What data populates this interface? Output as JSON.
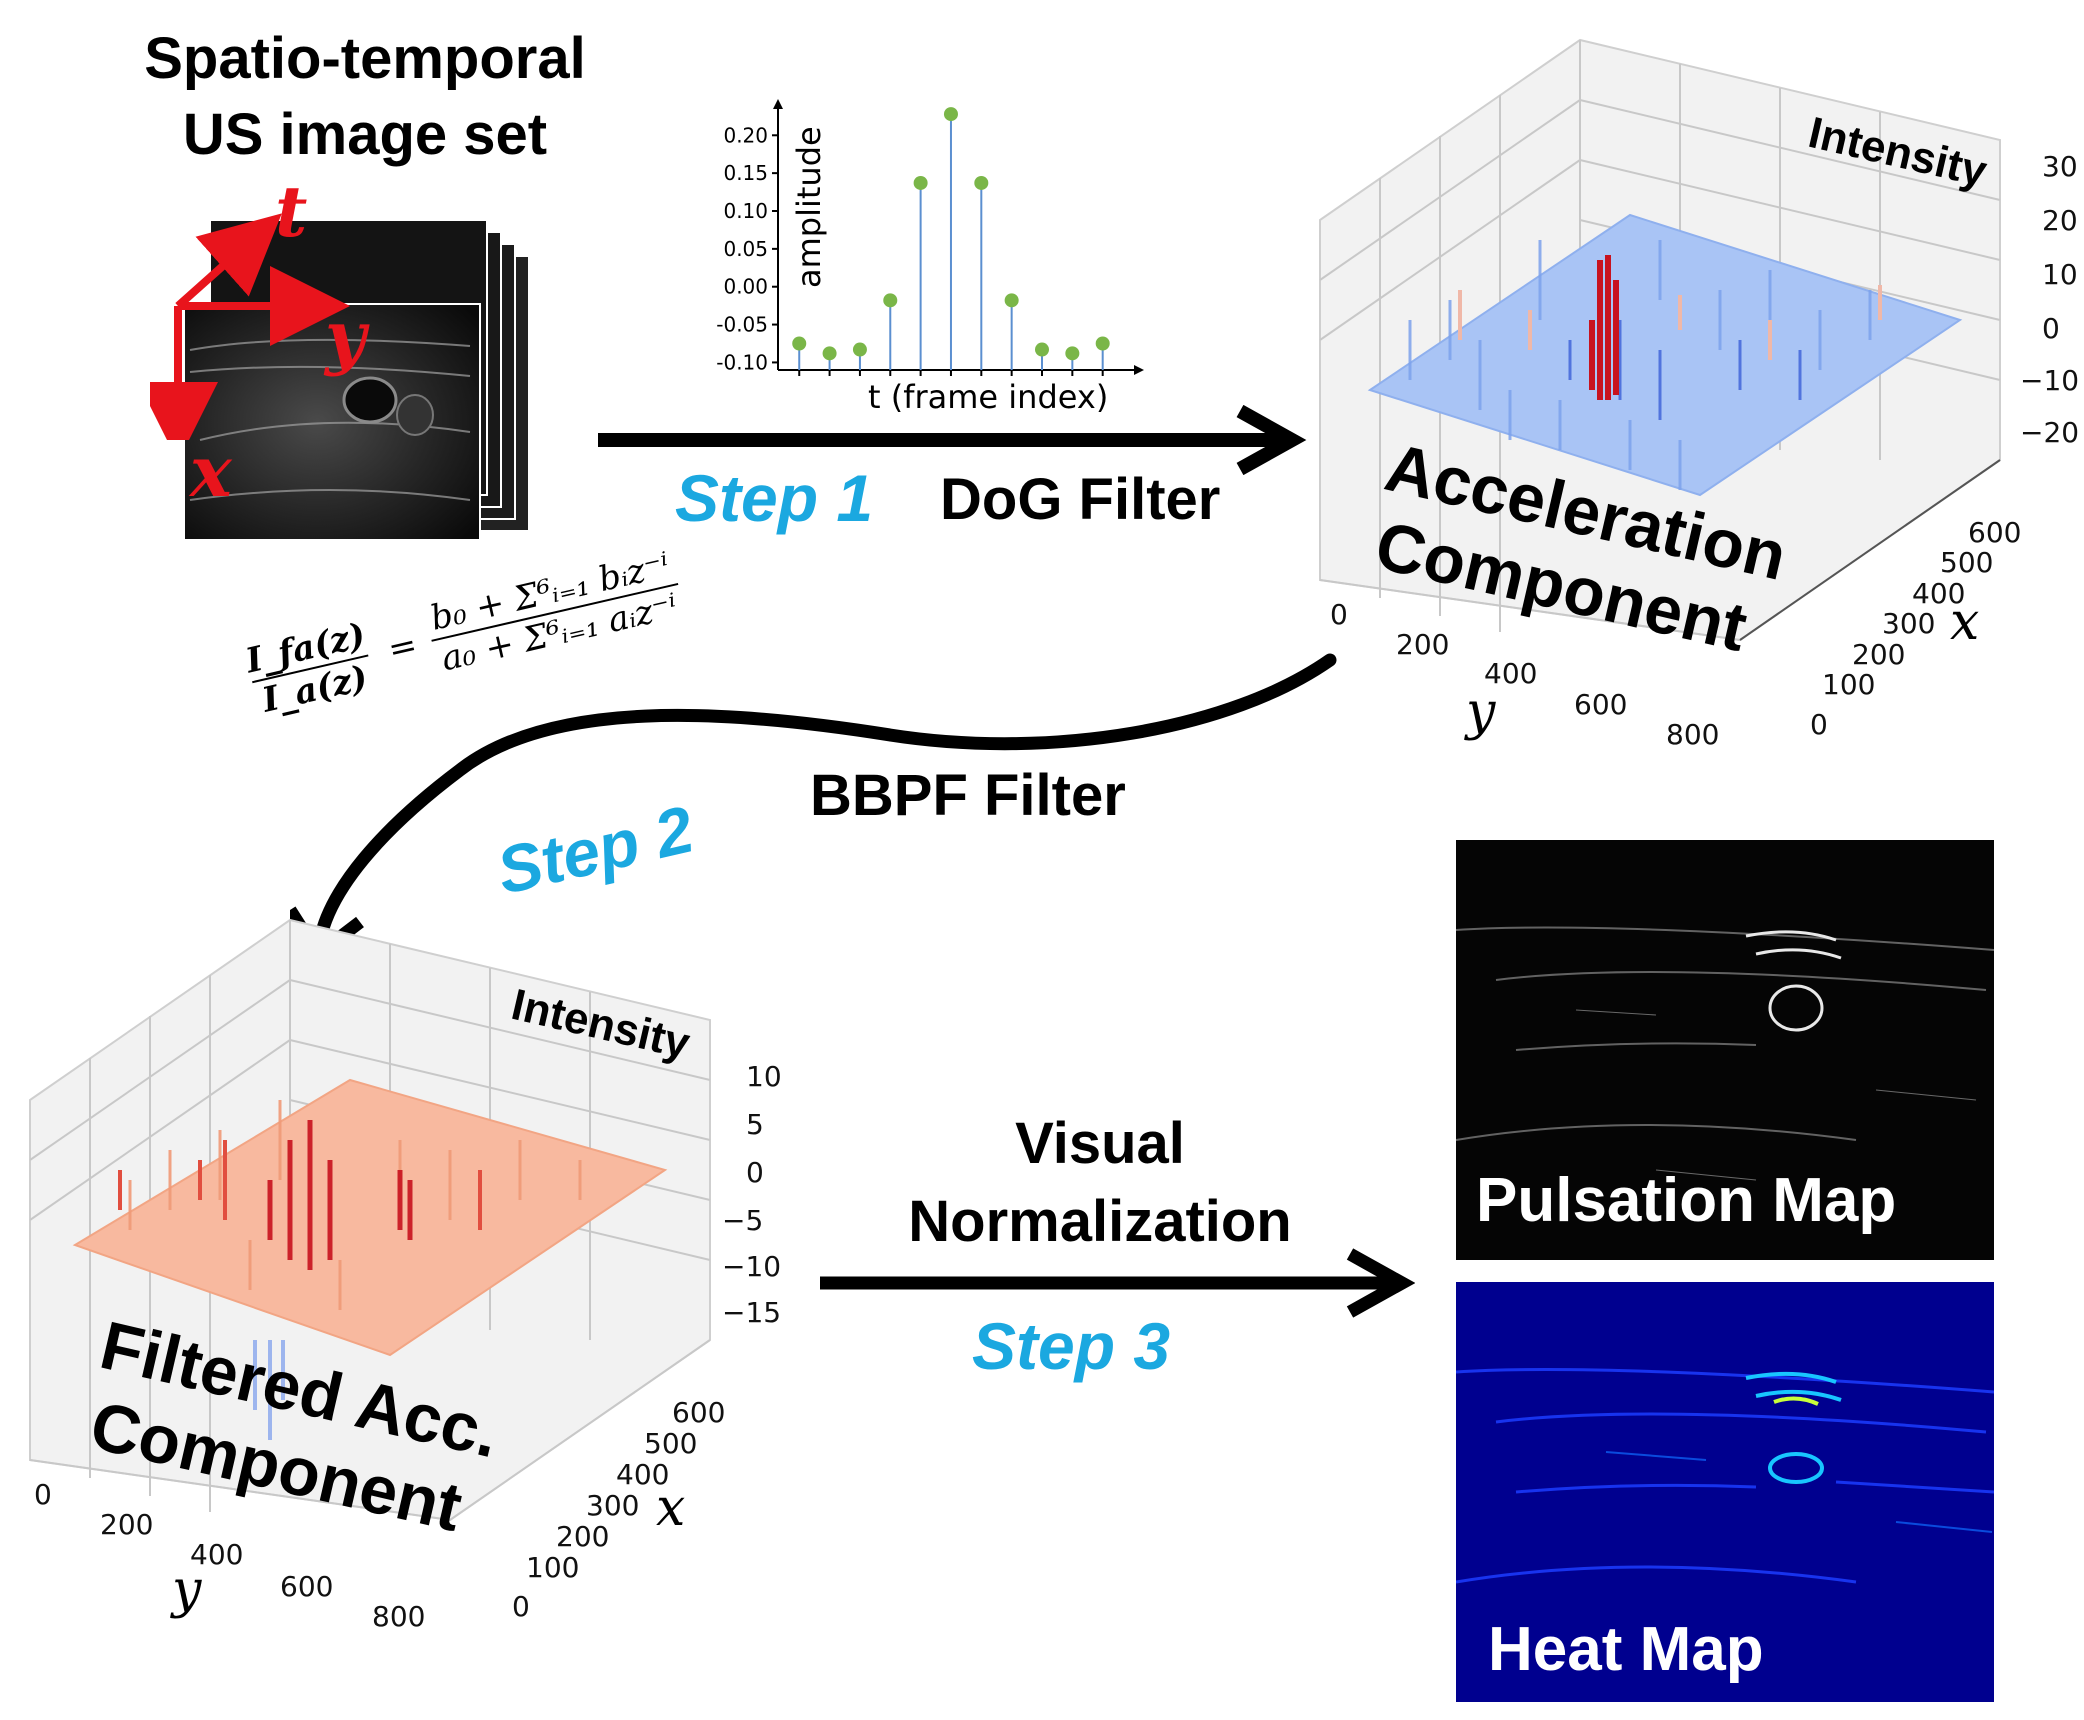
{
  "title": {
    "line1": "Spatio-temporal",
    "line2": "US image set"
  },
  "axes_labels": {
    "t": "t",
    "y": "y",
    "x": "x"
  },
  "step1": {
    "step": "Step 1",
    "name": "DoG Filter"
  },
  "step2": {
    "step": "Step 2",
    "name": "BBPF Filter"
  },
  "step3": {
    "step": "Step 3",
    "name_line1": "Visual",
    "name_line2": "Normalization"
  },
  "equation": {
    "lhs_num": "I_fa(z)",
    "lhs_den": "I_a(z)",
    "rhs_num": "b₀ + Σ⁶ᵢ₌₁ bᵢz⁻ⁱ",
    "rhs_den": "a₀ + Σ⁶ᵢ₌₁ aᵢz⁻ⁱ"
  },
  "chart_data": {
    "type": "scatter",
    "xlabel": "t (frame index)",
    "ylabel": "amplitude",
    "y_ticks": [
      "0.20",
      "0.15",
      "0.10",
      "0.05",
      "0.00",
      "-0.05",
      "-0.10"
    ],
    "ylim": [
      -0.11,
      0.24
    ],
    "x": [
      1,
      2,
      3,
      4,
      5,
      6,
      7,
      8,
      9,
      10,
      11
    ],
    "values": [
      -0.075,
      -0.088,
      -0.083,
      -0.018,
      0.137,
      0.228,
      0.137,
      -0.018,
      -0.083,
      -0.088,
      -0.075
    ],
    "marker_color": "#7ab648",
    "stem_color": "#5b8fd0"
  },
  "acc_surface": {
    "title_line1": "Acceleration",
    "title_line2": "Component",
    "z_label": "Intensity",
    "z_ticks": [
      "30",
      "20",
      "10",
      "0",
      "−10",
      "−20"
    ],
    "y_ticks": [
      "0",
      "200",
      "400",
      "600",
      "800"
    ],
    "x_ticks": [
      "600",
      "500",
      "400",
      "300",
      "200",
      "100",
      "0"
    ]
  },
  "filtered_surface": {
    "title_line1": "Filtered Acc.",
    "title_line2": "Component",
    "z_label": "Intensity",
    "z_ticks": [
      "10",
      "5",
      "0",
      "−5",
      "−10",
      "−15"
    ],
    "y_ticks": [
      "0",
      "200",
      "400",
      "600",
      "800"
    ],
    "x_ticks": [
      "600",
      "500",
      "400",
      "300",
      "200",
      "100",
      "0"
    ]
  },
  "outputs": {
    "pulsation": "Pulsation Map",
    "heat": "Heat Map"
  },
  "colors": {
    "step_blue": "#1ba8e0",
    "axis_red": "#e8141c",
    "heat_bg": "#00008f"
  }
}
